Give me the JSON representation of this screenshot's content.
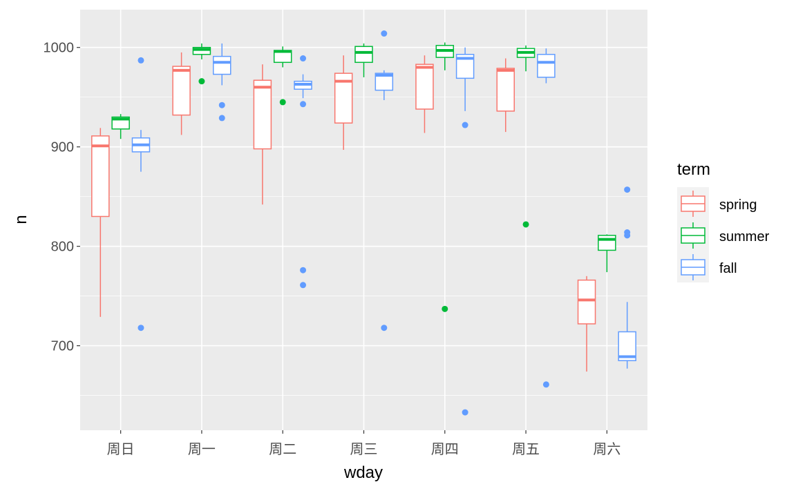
{
  "chart_data": {
    "type": "boxplot",
    "xlabel": "wday",
    "ylabel": "n",
    "categories": [
      "周日",
      "周一",
      "周二",
      "周三",
      "周四",
      "周五",
      "周六"
    ],
    "ylim": [
      615,
      1038
    ],
    "yticks": [
      700,
      800,
      900,
      1000
    ],
    "grid": true,
    "legend": {
      "title": "term",
      "position": "right"
    },
    "series": [
      {
        "name": "spring",
        "color": "#F8766D",
        "boxes": [
          {
            "min": 729,
            "q1": 830,
            "median": 901,
            "q3": 911,
            "max": 919,
            "outliers": []
          },
          {
            "min": 912,
            "q1": 932,
            "median": 977,
            "q3": 981,
            "max": 995,
            "outliers": []
          },
          {
            "min": 842,
            "q1": 898,
            "median": 960,
            "q3": 967,
            "max": 983,
            "outliers": []
          },
          {
            "min": 897,
            "q1": 924,
            "median": 966,
            "q3": 974,
            "max": 992,
            "outliers": []
          },
          {
            "min": 914,
            "q1": 938,
            "median": 980,
            "q3": 983,
            "max": 992,
            "outliers": []
          },
          {
            "min": 915,
            "q1": 936,
            "median": 977,
            "q3": 979,
            "max": 989,
            "outliers": []
          },
          {
            "min": 674,
            "q1": 722,
            "median": 746,
            "q3": 766,
            "max": 770,
            "outliers": []
          }
        ]
      },
      {
        "name": "summer",
        "color": "#00BA38",
        "boxes": [
          {
            "min": 908,
            "q1": 918,
            "median": 928,
            "q3": 930,
            "max": 933,
            "outliers": []
          },
          {
            "min": 988,
            "q1": 993,
            "median": 998,
            "q3": 1000,
            "max": 1004,
            "outliers": [
              966
            ]
          },
          {
            "min": 980,
            "q1": 985,
            "median": 996,
            "q3": 997,
            "max": 1001,
            "outliers": [
              945
            ]
          },
          {
            "min": 970,
            "q1": 985,
            "median": 995,
            "q3": 1001,
            "max": 1004,
            "outliers": []
          },
          {
            "min": 977,
            "q1": 990,
            "median": 997,
            "q3": 1002,
            "max": 1005,
            "outliers": [
              737
            ]
          },
          {
            "min": 976,
            "q1": 990,
            "median": 995,
            "q3": 999,
            "max": 1002,
            "outliers": [
              822
            ]
          },
          {
            "min": 774,
            "q1": 796,
            "median": 807,
            "q3": 811,
            "max": 812,
            "outliers": []
          }
        ]
      },
      {
        "name": "fall",
        "color": "#619CFF",
        "boxes": [
          {
            "min": 875,
            "q1": 895,
            "median": 902,
            "q3": 909,
            "max": 917,
            "outliers": [
              987,
              718
            ]
          },
          {
            "min": 962,
            "q1": 973,
            "median": 985,
            "q3": 991,
            "max": 1004,
            "outliers": [
              942,
              929
            ]
          },
          {
            "min": 949,
            "q1": 958,
            "median": 963,
            "q3": 966,
            "max": 973,
            "outliers": [
              989,
              943,
              776,
              761
            ]
          },
          {
            "min": 947,
            "q1": 957,
            "median": 972,
            "q3": 974,
            "max": 977,
            "outliers": [
              1014,
              718
            ]
          },
          {
            "min": 936,
            "q1": 969,
            "median": 989,
            "q3": 993,
            "max": 1000,
            "outliers": [
              922,
              633
            ]
          },
          {
            "min": 964,
            "q1": 970,
            "median": 985,
            "q3": 993,
            "max": 999,
            "outliers": [
              661
            ]
          },
          {
            "min": 677,
            "q1": 685,
            "median": 689,
            "q3": 714,
            "max": 744,
            "outliers": [
              857,
              814,
              811
            ]
          }
        ]
      }
    ]
  }
}
